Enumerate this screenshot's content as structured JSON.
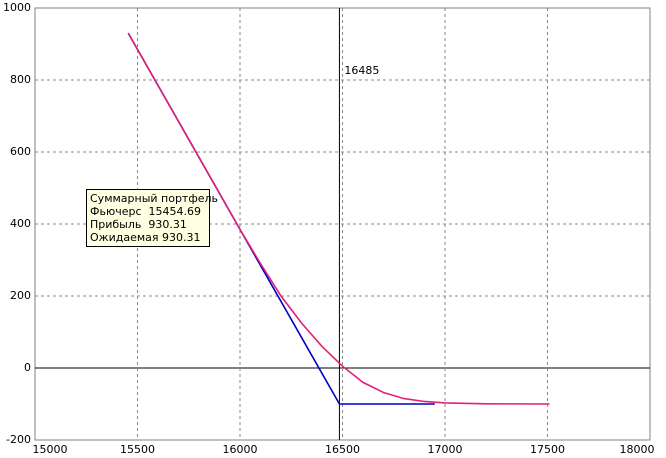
{
  "chart_data": {
    "type": "line",
    "xlim": [
      15000,
      18000
    ],
    "ylim": [
      -200,
      1000
    ],
    "xticks": [
      15000,
      15500,
      16000,
      16500,
      17000,
      17500,
      18000
    ],
    "yticks": [
      -200,
      0,
      200,
      400,
      600,
      800,
      1000
    ],
    "grid": true,
    "vline": 16485,
    "series": [
      {
        "color": "#0000c0",
        "x": [
          15454.69,
          16485,
          16950
        ],
        "values": [
          930.31,
          -100,
          -100
        ]
      },
      {
        "color": "#e0207a",
        "x": [
          15454.69,
          15600,
          15800,
          16000,
          16100,
          16200,
          16300,
          16400,
          16500,
          16600,
          16700,
          16800,
          16900,
          17000,
          17200,
          17510
        ],
        "values": [
          930.31,
          785,
          585,
          385,
          290,
          200,
          125,
          60,
          5,
          -40,
          -68,
          -85,
          -93,
          -97,
          -99.5,
          -100
        ]
      }
    ],
    "tooltip": [
      "Суммарный портфель",
      "Фьючерс  15454.69",
      "Прибыль  930.31",
      "Ожидаемая 930.31"
    ]
  }
}
